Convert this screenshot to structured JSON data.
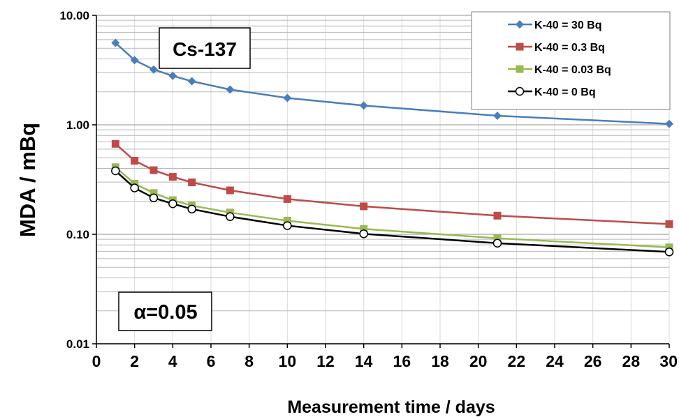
{
  "chart_data": {
    "type": "line",
    "title": "",
    "xlabel": "Measurement time / days",
    "ylabel": "MDA  / mBq",
    "xlim": [
      0,
      30
    ],
    "ylim": [
      0.01,
      10
    ],
    "yscale": "log",
    "x_ticks": [
      "0",
      "2",
      "4",
      "6",
      "8",
      "10",
      "12",
      "14",
      "16",
      "18",
      "20",
      "22",
      "24",
      "26",
      "28",
      "30"
    ],
    "y_ticks": [
      "0.01",
      "0.10",
      "1.00",
      "10.00"
    ],
    "grid": true,
    "legend_position": "top-right",
    "annotations": [
      "Cs-137",
      "α=0.05"
    ],
    "series": [
      {
        "name": "K-40 = 30 Bq",
        "color": "#4a7ebb",
        "marker": "diamond",
        "x": [
          1,
          2,
          3,
          4,
          5,
          7,
          10,
          14,
          21,
          30
        ],
        "y": [
          5.6,
          3.9,
          3.2,
          2.8,
          2.5,
          2.1,
          1.76,
          1.5,
          1.21,
          1.02
        ]
      },
      {
        "name": "K-40 = 0.3 Bq",
        "color": "#be4b48",
        "marker": "square",
        "x": [
          1,
          2,
          3,
          4,
          5,
          7,
          10,
          14,
          21,
          30
        ],
        "y": [
          0.67,
          0.47,
          0.385,
          0.335,
          0.298,
          0.252,
          0.21,
          0.18,
          0.148,
          0.124
        ]
      },
      {
        "name": "K-40 = 0.03 Bq",
        "color": "#98b954",
        "marker": "square",
        "x": [
          1,
          2,
          3,
          4,
          5,
          7,
          10,
          14,
          21,
          30
        ],
        "y": [
          0.41,
          0.29,
          0.238,
          0.205,
          0.183,
          0.158,
          0.133,
          0.112,
          0.092,
          0.076
        ]
      },
      {
        "name": "K-40 = 0 Bq",
        "color": "#000000",
        "marker": "circle-open",
        "x": [
          1,
          2,
          3,
          4,
          5,
          7,
          10,
          14,
          21,
          30
        ],
        "y": [
          0.38,
          0.265,
          0.215,
          0.19,
          0.17,
          0.145,
          0.12,
          0.101,
          0.083,
          0.069
        ]
      }
    ]
  }
}
